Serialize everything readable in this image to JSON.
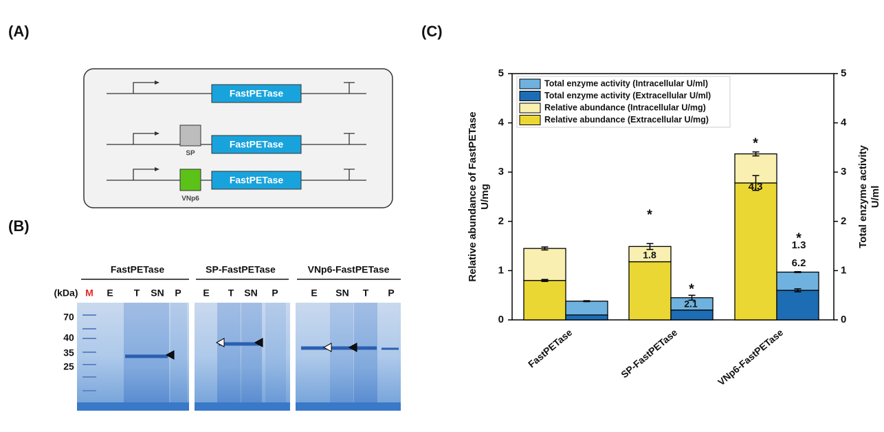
{
  "panels": {
    "a": "(A)",
    "b": "(B)",
    "c": "(C)"
  },
  "diagram": {
    "constructs": [
      {
        "gene": "FastPETase"
      },
      {
        "signal": "SP",
        "gene": "FastPETase"
      },
      {
        "signal": "VNp6",
        "gene": "FastPETase"
      }
    ]
  },
  "gel": {
    "unit": "(kDa)",
    "groups": [
      {
        "title": "FastPETase",
        "lanes": [
          "M",
          "E",
          "T",
          "SN",
          "P"
        ]
      },
      {
        "title": "SP-FastPETase",
        "lanes": [
          "E",
          "T",
          "SN",
          "P"
        ]
      },
      {
        "title": "VNp6-FastPETase",
        "lanes": [
          "E",
          "SN",
          "T",
          "P"
        ]
      }
    ],
    "markers": [
      70,
      40,
      35,
      25
    ]
  },
  "chart_data": {
    "type": "bar",
    "stacked": true,
    "ylabel": [
      "Relative abundance of FastPETase",
      "U/mg"
    ],
    "y2label": [
      "Total enzyme activity",
      "U/ml"
    ],
    "categories": [
      "FastPETase",
      "SP-FastPETase",
      "VNp6-FastPETase"
    ],
    "series": [
      {
        "name": "Total enzyme activity (Intracellular U/ml)",
        "color": "#6fb2df",
        "axis": "y2",
        "values": [
          0.28,
          0.25,
          0.37
        ],
        "errors": [
          0.01,
          0.05,
          0.01
        ]
      },
      {
        "name": "Total enzyme activity (Extracellular U/ml)",
        "color": "#1c6db4",
        "axis": "y2",
        "values": [
          0.1,
          0.2,
          0.6
        ],
        "errors": [
          null,
          null,
          0.03
        ]
      },
      {
        "name": "Relative abundance (Intracellular U/mg)",
        "color": "#f8efb0",
        "values": [
          0.65,
          0.31,
          0.59
        ],
        "errors": [
          0.03,
          0.06,
          0.04
        ]
      },
      {
        "name": "Relative abundance (Extracellular U/mg)",
        "color": "#ebd733",
        "values": [
          0.8,
          1.18,
          2.78
        ],
        "errors": [
          0.02,
          null,
          0.15
        ]
      }
    ],
    "annotations": [
      "*",
      "1.8",
      "*",
      "2.1",
      "*",
      "4.3",
      "*",
      "1.3",
      "6.2"
    ],
    "ylim": [
      0,
      5
    ],
    "yticks": [
      0,
      1,
      2,
      3,
      4,
      5
    ],
    "y2lim": [
      0,
      5
    ],
    "y2ticks": [
      0,
      1,
      2,
      3,
      4,
      5
    ],
    "legend": "upper left"
  }
}
